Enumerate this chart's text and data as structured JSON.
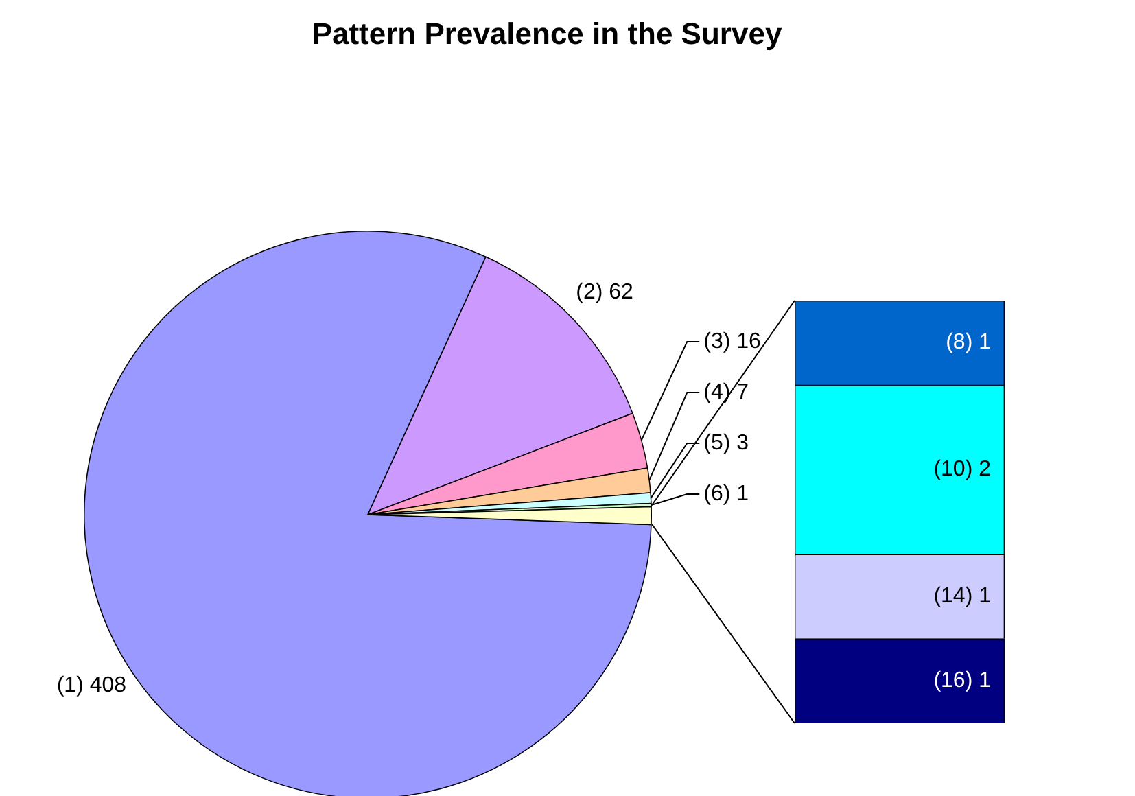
{
  "chart_data": [
    {
      "type": "pie",
      "title": "Pattern Prevalence in the Survey",
      "categories": [
        "(1)",
        "(2)",
        "(3)",
        "(4)",
        "(5)",
        "(6)",
        null
      ],
      "values": [
        408,
        62,
        16,
        7,
        3,
        1,
        5
      ],
      "value_labels": [
        "408",
        "62",
        "16",
        "7",
        "3",
        "1",
        null
      ],
      "colors": [
        "#9999ff",
        "#cc99ff",
        "#ff99cc",
        "#ffcc99",
        "#ccffff",
        "#ccffcc",
        "#ffffcc"
      ]
    },
    {
      "type": "bar",
      "stacked": true,
      "categories": [
        null
      ],
      "data_labels": true,
      "series": [
        {
          "name": "(16)",
          "color": "#000080",
          "values": [
            1
          ]
        },
        {
          "name": "(14)",
          "color": "#ccccff",
          "values": [
            1
          ]
        },
        {
          "name": "(10)",
          "color": "#00ffff",
          "values": [
            2
          ]
        },
        {
          "name": "(8)",
          "color": "#0066cc",
          "values": [
            1
          ]
        }
      ]
    }
  ]
}
